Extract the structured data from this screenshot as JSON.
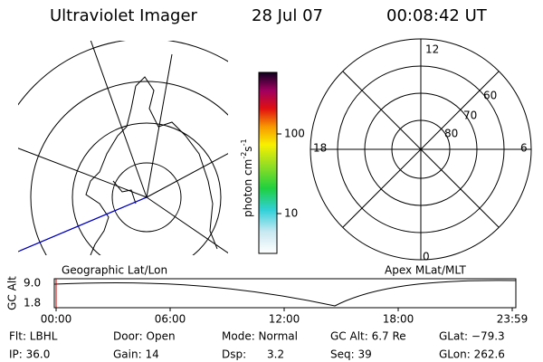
{
  "header": {
    "title": "Ultraviolet Imager",
    "date": "28 Jul 07",
    "time": "00:08:42 UT"
  },
  "left_panel": {
    "label": "Geographic Lat/Lon"
  },
  "colorbar": {
    "label": {
      "text": "photon cm",
      "exp1": "-2",
      "unit2": "s",
      "exp2": "-1"
    },
    "ticks": [
      "100",
      "10"
    ]
  },
  "right_panel": {
    "label": "Apex MLat/MLT",
    "mlt": {
      "top": "12",
      "left": "18",
      "right": "6",
      "bottom": "0"
    },
    "mlat": [
      "60",
      "70",
      "80"
    ]
  },
  "altitude_plot": {
    "ylabel": "GC Alt",
    "yticks": [
      "9.0",
      "1.8"
    ],
    "xticks": [
      "00:00",
      "06:00",
      "12:00",
      "18:00",
      "23:59"
    ]
  },
  "info": {
    "rows": [
      [
        "Flt: LBHL",
        "Door: Open",
        "Mode: Normal",
        "GC Alt: 6.7 Re",
        "GLat: −79.3"
      ],
      [
        "IP: 36.0",
        "Gain: 14",
        "Dsp:      3.2",
        "Seq: 39",
        "GLon: 262.6"
      ]
    ]
  }
}
